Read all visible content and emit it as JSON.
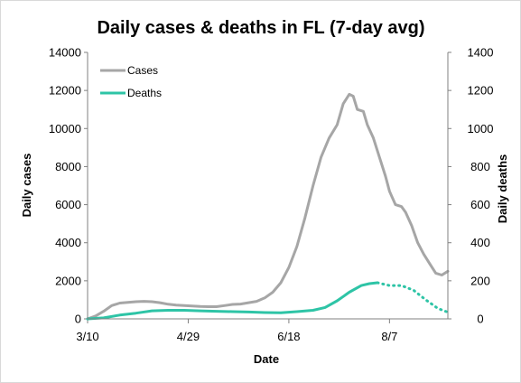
{
  "chart_data": {
    "type": "line",
    "title": "Daily cases & deaths in FL (7-day avg)",
    "xlabel": "Date",
    "ylabel": "Daily cases",
    "y2label": "Daily deaths",
    "x_range": [
      "2020-03-10",
      "2020-09-05"
    ],
    "x_ticks": [
      {
        "date": "2020-03-10",
        "label": "3/10"
      },
      {
        "date": "2020-04-29",
        "label": "4/29"
      },
      {
        "date": "2020-06-18",
        "label": "6/18"
      },
      {
        "date": "2020-08-07",
        "label": "8/7"
      }
    ],
    "ylim": [
      0,
      14000
    ],
    "y_ticks": [
      "0",
      "2000",
      "4000",
      "6000",
      "8000",
      "10000",
      "12000",
      "14000"
    ],
    "y2lim": [
      0,
      1400
    ],
    "y2_ticks": [
      "0",
      "200",
      "400",
      "600",
      "800",
      "1000",
      "1200",
      "1400"
    ],
    "grid": false,
    "legend_position": "top-left",
    "series": [
      {
        "name": "Cases",
        "axis": "left",
        "color": "#a6a6a6",
        "line_style": "solid",
        "points": [
          [
            "2020-03-10",
            0
          ],
          [
            "2020-03-14",
            150
          ],
          [
            "2020-03-18",
            400
          ],
          [
            "2020-03-22",
            700
          ],
          [
            "2020-03-26",
            830
          ],
          [
            "2020-03-30",
            870
          ],
          [
            "2020-04-03",
            900
          ],
          [
            "2020-04-07",
            920
          ],
          [
            "2020-04-11",
            900
          ],
          [
            "2020-04-15",
            850
          ],
          [
            "2020-04-19",
            770
          ],
          [
            "2020-04-23",
            720
          ],
          [
            "2020-04-27",
            700
          ],
          [
            "2020-05-01",
            680
          ],
          [
            "2020-05-05",
            650
          ],
          [
            "2020-05-09",
            640
          ],
          [
            "2020-05-13",
            640
          ],
          [
            "2020-05-17",
            700
          ],
          [
            "2020-05-21",
            760
          ],
          [
            "2020-05-25",
            780
          ],
          [
            "2020-05-29",
            850
          ],
          [
            "2020-06-02",
            920
          ],
          [
            "2020-06-06",
            1100
          ],
          [
            "2020-06-10",
            1400
          ],
          [
            "2020-06-14",
            1900
          ],
          [
            "2020-06-18",
            2700
          ],
          [
            "2020-06-22",
            3800
          ],
          [
            "2020-06-26",
            5300
          ],
          [
            "2020-06-30",
            7000
          ],
          [
            "2020-07-04",
            8500
          ],
          [
            "2020-07-08",
            9500
          ],
          [
            "2020-07-12",
            10200
          ],
          [
            "2020-07-15",
            11300
          ],
          [
            "2020-07-18",
            11800
          ],
          [
            "2020-07-20",
            11700
          ],
          [
            "2020-07-22",
            11000
          ],
          [
            "2020-07-25",
            10900
          ],
          [
            "2020-07-27",
            10200
          ],
          [
            "2020-07-30",
            9500
          ],
          [
            "2020-08-02",
            8500
          ],
          [
            "2020-08-05",
            7500
          ],
          [
            "2020-08-07",
            6700
          ],
          [
            "2020-08-10",
            6000
          ],
          [
            "2020-08-13",
            5900
          ],
          [
            "2020-08-15",
            5600
          ],
          [
            "2020-08-18",
            4900
          ],
          [
            "2020-08-21",
            4000
          ],
          [
            "2020-08-24",
            3400
          ],
          [
            "2020-08-27",
            2900
          ],
          [
            "2020-08-30",
            2400
          ],
          [
            "2020-09-02",
            2300
          ],
          [
            "2020-09-05",
            2500
          ]
        ]
      },
      {
        "name": "Deaths",
        "axis": "right",
        "color": "#2ec4a6",
        "line_style": "solid",
        "points": [
          [
            "2020-03-10",
            0
          ],
          [
            "2020-03-18",
            5
          ],
          [
            "2020-03-26",
            20
          ],
          [
            "2020-04-03",
            30
          ],
          [
            "2020-04-11",
            42
          ],
          [
            "2020-04-19",
            45
          ],
          [
            "2020-04-27",
            45
          ],
          [
            "2020-05-05",
            42
          ],
          [
            "2020-05-13",
            40
          ],
          [
            "2020-05-21",
            38
          ],
          [
            "2020-05-29",
            36
          ],
          [
            "2020-06-06",
            33
          ],
          [
            "2020-06-14",
            32
          ],
          [
            "2020-06-22",
            38
          ],
          [
            "2020-06-30",
            45
          ],
          [
            "2020-07-06",
            60
          ],
          [
            "2020-07-12",
            95
          ],
          [
            "2020-07-18",
            140
          ],
          [
            "2020-07-24",
            175
          ],
          [
            "2020-07-28",
            185
          ],
          [
            "2020-08-01",
            190
          ]
        ]
      },
      {
        "name": "",
        "axis": "right",
        "color": "#2ec4a6",
        "line_style": "dotted",
        "points": [
          [
            "2020-08-01",
            190
          ],
          [
            "2020-08-07",
            175
          ],
          [
            "2020-08-13",
            175
          ],
          [
            "2020-08-19",
            150
          ],
          [
            "2020-08-25",
            100
          ],
          [
            "2020-08-31",
            55
          ],
          [
            "2020-09-05",
            35
          ]
        ]
      }
    ]
  }
}
